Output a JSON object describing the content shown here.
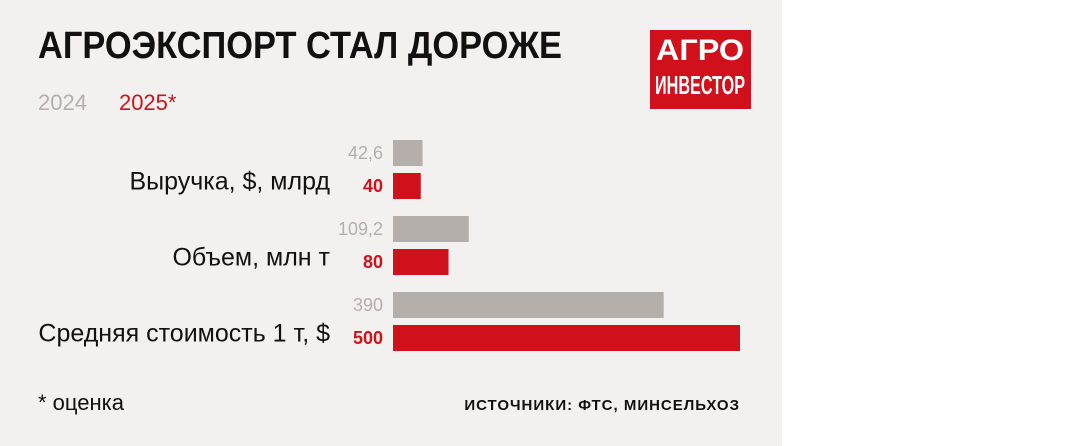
{
  "chart_data": {
    "type": "hbar",
    "title": "АГРОЭКСПОРТ СТАЛ ДОРОЖЕ",
    "logo": [
      "АГРО",
      "ИНВЕСТОР"
    ],
    "categories": [
      "Выручка, $, млрд",
      "Объем, млн т",
      "Средняя стоимость 1 т, $"
    ],
    "series": [
      {
        "name": "2024",
        "color": "#b5afab",
        "values": [
          42.6,
          109.2,
          390
        ],
        "value_labels": [
          "42,6",
          "109,2",
          "390"
        ]
      },
      {
        "name": "2025*",
        "color": "#d0111b",
        "values": [
          40,
          80,
          500
        ]
      }
    ],
    "footnote": "* оценка",
    "source": "ИСТОЧНИКИ: ФТС, МИНСЕЛЬХОЗ"
  }
}
